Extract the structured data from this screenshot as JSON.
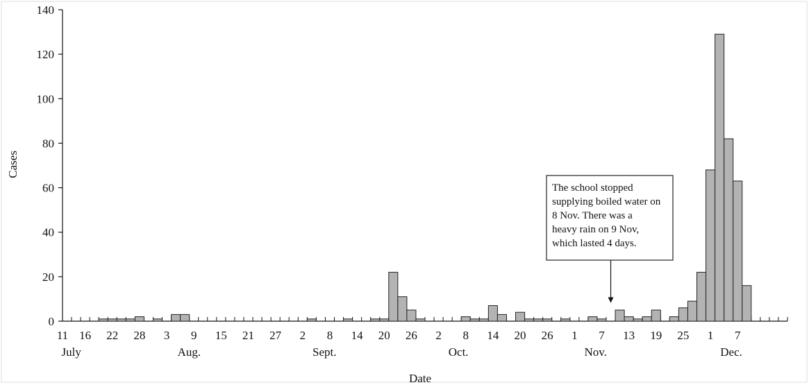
{
  "chart_data": {
    "type": "bar",
    "title": "",
    "xlabel": "Date",
    "ylabel": "Cases",
    "ylim": [
      0,
      140
    ],
    "yticks": [
      "0",
      "20",
      "40",
      "60",
      "80",
      "100",
      "120",
      "140"
    ],
    "x_unit": "2-day period",
    "x_range": [
      0,
      80
    ],
    "x_tick_labels": [
      {
        "x": 0,
        "label": "11"
      },
      {
        "x": 2.5,
        "label": "16"
      },
      {
        "x": 5.5,
        "label": "22"
      },
      {
        "x": 8.5,
        "label": "28"
      },
      {
        "x": 11.5,
        "label": "3"
      },
      {
        "x": 14.5,
        "label": "9"
      },
      {
        "x": 17.5,
        "label": "15"
      },
      {
        "x": 20.5,
        "label": "21"
      },
      {
        "x": 23.5,
        "label": "27"
      },
      {
        "x": 26.5,
        "label": "2"
      },
      {
        "x": 29.5,
        "label": "8"
      },
      {
        "x": 32.5,
        "label": "14"
      },
      {
        "x": 35.5,
        "label": "20"
      },
      {
        "x": 38.5,
        "label": "26"
      },
      {
        "x": 41.5,
        "label": "2"
      },
      {
        "x": 44.5,
        "label": "8"
      },
      {
        "x": 47.5,
        "label": "14"
      },
      {
        "x": 50.5,
        "label": "20"
      },
      {
        "x": 53.5,
        "label": "26"
      },
      {
        "x": 56.5,
        "label": "1"
      },
      {
        "x": 59.5,
        "label": "7"
      },
      {
        "x": 62.5,
        "label": "13"
      },
      {
        "x": 65.5,
        "label": "19"
      },
      {
        "x": 68.5,
        "label": "25"
      },
      {
        "x": 71.5,
        "label": "1"
      },
      {
        "x": 74.5,
        "label": "7"
      }
    ],
    "month_labels": [
      {
        "x": 0.5,
        "label": "July"
      },
      {
        "x": 13.3,
        "label": "Aug."
      },
      {
        "x": 28.2,
        "label": "Sept."
      },
      {
        "x": 43.2,
        "label": "Oct."
      },
      {
        "x": 58.2,
        "label": "Nov."
      },
      {
        "x": 73.2,
        "label": "Dec."
      }
    ],
    "bars": [
      {
        "x": 4,
        "value": 1
      },
      {
        "x": 5,
        "value": 1
      },
      {
        "x": 6,
        "value": 1
      },
      {
        "x": 7,
        "value": 1
      },
      {
        "x": 8,
        "value": 2
      },
      {
        "x": 10,
        "value": 1
      },
      {
        "x": 12,
        "value": 3
      },
      {
        "x": 13,
        "value": 3
      },
      {
        "x": 27,
        "value": 1
      },
      {
        "x": 31,
        "value": 1
      },
      {
        "x": 34,
        "value": 1
      },
      {
        "x": 35,
        "value": 1
      },
      {
        "x": 36,
        "value": 22
      },
      {
        "x": 37,
        "value": 11
      },
      {
        "x": 38,
        "value": 5
      },
      {
        "x": 39,
        "value": 1
      },
      {
        "x": 44,
        "value": 2
      },
      {
        "x": 45,
        "value": 1
      },
      {
        "x": 46,
        "value": 1
      },
      {
        "x": 47,
        "value": 7
      },
      {
        "x": 48,
        "value": 3
      },
      {
        "x": 50,
        "value": 4
      },
      {
        "x": 51,
        "value": 1
      },
      {
        "x": 52,
        "value": 1
      },
      {
        "x": 53,
        "value": 1
      },
      {
        "x": 55,
        "value": 1
      },
      {
        "x": 58,
        "value": 2
      },
      {
        "x": 59,
        "value": 1
      },
      {
        "x": 61,
        "value": 5
      },
      {
        "x": 62,
        "value": 2
      },
      {
        "x": 63,
        "value": 1
      },
      {
        "x": 64,
        "value": 2
      },
      {
        "x": 65,
        "value": 5
      },
      {
        "x": 67,
        "value": 2
      },
      {
        "x": 68,
        "value": 6
      },
      {
        "x": 69,
        "value": 9
      },
      {
        "x": 70,
        "value": 22
      },
      {
        "x": 71,
        "value": 68
      },
      {
        "x": 72,
        "value": 129
      },
      {
        "x": 73,
        "value": 82
      },
      {
        "x": 74,
        "value": 63
      },
      {
        "x": 75,
        "value": 16
      }
    ],
    "annotation": {
      "lines": [
        "The school stopped",
        "supplying boiled water on",
        "8 Nov. There was a",
        "heavy rain on 9 Nov,",
        "which lasted 4 days."
      ],
      "arrow_x": 60.5,
      "arrow_value": 7
    },
    "grid": false,
    "colors": {
      "bar_fill": "#b3b3b3",
      "bar_stroke": "#222222",
      "axis": "#111111"
    }
  }
}
